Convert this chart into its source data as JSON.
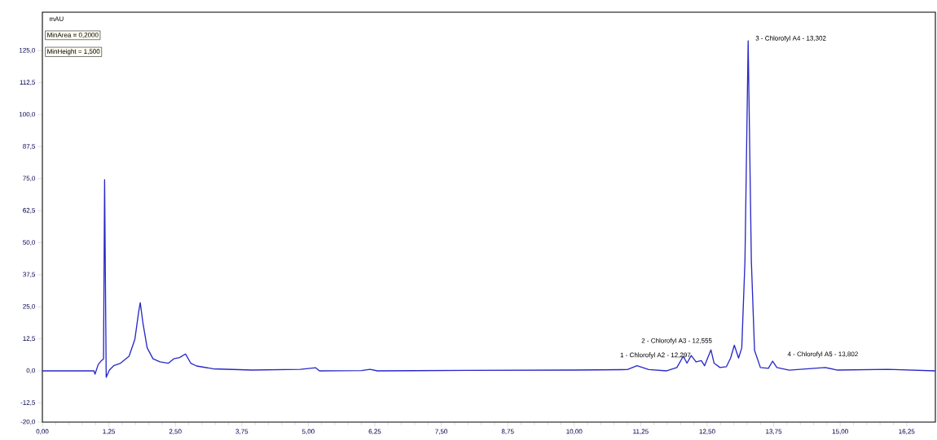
{
  "chart_data": {
    "type": "line",
    "ylabel": "mAU",
    "x": [
      0,
      0.97,
      0.99,
      1.05,
      1.11,
      1.15,
      1.17,
      1.2,
      1.26,
      1.34,
      1.47,
      1.63,
      1.74,
      1.81,
      1.84,
      1.89,
      1.97,
      2.08,
      2.21,
      2.37,
      2.47,
      2.58,
      2.69,
      2.79,
      2.9,
      3.21,
      3.94,
      4.85,
      5.14,
      5.21,
      6.0,
      6.16,
      6.3,
      8.0,
      10.0,
      11.0,
      11.18,
      11.4,
      11.74,
      11.93,
      12.05,
      12.12,
      12.2,
      12.29,
      12.39,
      12.45,
      12.57,
      12.63,
      12.74,
      12.86,
      12.94,
      13.01,
      13.09,
      13.15,
      13.21,
      13.27,
      13.33,
      13.39,
      13.5,
      13.65,
      13.73,
      13.81,
      14.04,
      14.72,
      14.95,
      15.9,
      16.79
    ],
    "series": [
      {
        "color": "#2828c8",
        "values": [
          0,
          0,
          -1.3,
          2.5,
          4,
          4.7,
          74.6,
          -2.5,
          0.3,
          2,
          3,
          5.7,
          12.4,
          23,
          26.6,
          18.8,
          9,
          4.7,
          3.5,
          3,
          4.7,
          5.2,
          6.6,
          3,
          1.9,
          0.8,
          0.3,
          0.6,
          1.2,
          0,
          0.1,
          0.6,
          0,
          0.2,
          0.3,
          0.5,
          2,
          0.5,
          0,
          1.3,
          5.7,
          3,
          6,
          3.5,
          4,
          2,
          8.2,
          3,
          1.3,
          1.6,
          5,
          10,
          5,
          9,
          43,
          128.8,
          43,
          8,
          1.3,
          1,
          3.8,
          1.3,
          0.3,
          1.3,
          0.3,
          0.6,
          0
        ]
      }
    ],
    "xlim": [
      0,
      16.79
    ],
    "ylim": [
      -20,
      140
    ],
    "xticks": [
      {
        "value": 0,
        "label": "0,00"
      },
      {
        "value": 1.25,
        "label": "1,25"
      },
      {
        "value": 2.5,
        "label": "2,50"
      },
      {
        "value": 3.75,
        "label": "3,75"
      },
      {
        "value": 5,
        "label": "5,00"
      },
      {
        "value": 6.25,
        "label": "6,25"
      },
      {
        "value": 7.5,
        "label": "7,50"
      },
      {
        "value": 8.75,
        "label": "8,75"
      },
      {
        "value": 10,
        "label": "10,00"
      },
      {
        "value": 11.25,
        "label": "11,25"
      },
      {
        "value": 12.5,
        "label": "12,50"
      },
      {
        "value": 13.75,
        "label": "13,75"
      },
      {
        "value": 15,
        "label": "15,00"
      },
      {
        "value": 16.25,
        "label": "16,25"
      }
    ],
    "yticks": [
      {
        "value": -20,
        "label": "-20,0"
      },
      {
        "value": -12.5,
        "label": "-12,5"
      },
      {
        "value": 0,
        "label": "0,0"
      },
      {
        "value": 12.5,
        "label": "12,5"
      },
      {
        "value": 25,
        "label": "25,0"
      },
      {
        "value": 37.5,
        "label": "37,5"
      },
      {
        "value": 50,
        "label": "50,0"
      },
      {
        "value": 62.5,
        "label": "62,5"
      },
      {
        "value": 75,
        "label": "75,0"
      },
      {
        "value": 87.5,
        "label": "87,5"
      },
      {
        "value": 100,
        "label": "100,0"
      },
      {
        "value": 112.5,
        "label": "112,5"
      },
      {
        "value": 125,
        "label": "125,0"
      }
    ],
    "annotations": [
      "MinArea = 0,2000",
      "MinHeight = 1,500",
      {
        "text": "3 - Chlorofyl A4 - 13,302",
        "x": 13.302,
        "y": 128.8
      },
      {
        "text": "1 - Chlorofyl A2 - 12,297",
        "x": 12.297,
        "y": 6
      },
      {
        "text": "2 - Chlorofyl A3 - 12,555",
        "x": 12.555,
        "y": 8.2
      },
      {
        "text": "4 - Chlorofyl A5 - 13,802",
        "x": 13.802,
        "y": 3.8
      }
    ],
    "grid": false,
    "marker": "none",
    "line_style": "solid"
  }
}
